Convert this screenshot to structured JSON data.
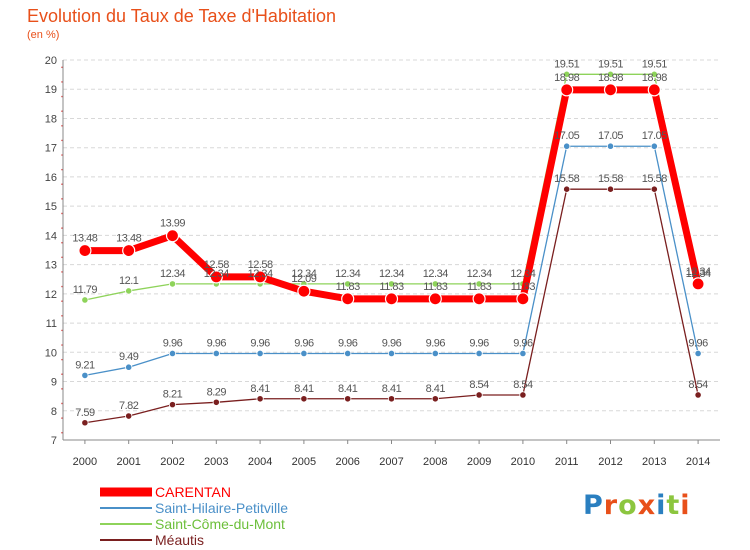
{
  "header": {
    "title": "Evolution du Taux de Taxe d'Habitation",
    "subtitle": "(en %)"
  },
  "logo": {
    "text": "Proxiti",
    "colors": [
      "#2a7fc0",
      "#e8501a",
      "#8cc63f",
      "#e8501a",
      "#2a7fc0",
      "#8cc63f",
      "#e8501a"
    ]
  },
  "chart_data": {
    "type": "line",
    "title": "Evolution du Taux de Taxe d'Habitation",
    "ylabel": "(en %)",
    "xlabel": "",
    "ylim": [
      7,
      20
    ],
    "yticks": [
      "7",
      "8",
      "9",
      "10",
      "11",
      "12",
      "13",
      "14",
      "15",
      "16",
      "17",
      "18",
      "19",
      "20"
    ],
    "grid": "horizontal",
    "legend_position": "bottom-left",
    "x": [
      "2000",
      "2001",
      "2002",
      "2003",
      "2004",
      "2005",
      "2006",
      "2007",
      "2008",
      "2009",
      "2010",
      "2011",
      "2012",
      "2013",
      "2014"
    ],
    "series": [
      {
        "name": "CARENTAN",
        "color": "#ff0000",
        "values": [
          13.48,
          13.48,
          13.99,
          12.58,
          12.58,
          12.09,
          11.83,
          11.83,
          11.83,
          11.83,
          11.83,
          18.98,
          18.98,
          18.98,
          12.34
        ],
        "labels": [
          "13.48",
          "13.48",
          "13.99",
          "12.58",
          "12.58",
          "12.09",
          "11.83",
          "11.83",
          "11.83",
          "11.83",
          "11.83",
          "18.98",
          "18.98",
          "18.98",
          "12.34"
        ]
      },
      {
        "name": "Saint-Hilaire-Petitville",
        "color": "#4a90c8",
        "values": [
          9.21,
          9.49,
          9.96,
          9.96,
          9.96,
          9.96,
          9.96,
          9.96,
          9.96,
          9.96,
          9.96,
          17.05,
          17.05,
          17.05,
          9.96
        ],
        "labels": [
          "9.21",
          "9.49",
          "9.96",
          "9.96",
          "9.96",
          "9.96",
          "9.96",
          "9.96",
          "9.96",
          "9.96",
          "9.96",
          "17.05",
          "17.05",
          "17.05",
          "9.96"
        ]
      },
      {
        "name": "Saint-Côme-du-Mont",
        "color": "#8ed35a",
        "values": [
          11.79,
          12.1,
          12.34,
          12.34,
          12.34,
          12.34,
          12.34,
          12.34,
          12.34,
          12.34,
          12.34,
          19.51,
          19.51,
          19.51,
          12.34
        ],
        "labels": [
          "11.79",
          "12.1",
          "12.34",
          "12.34",
          "12.34",
          "12.34",
          "12.34",
          "12.34",
          "12.34",
          "12.34",
          "12.34",
          "19.51",
          "19.51",
          "19.51",
          "12.34"
        ]
      },
      {
        "name": "Méautis",
        "color": "#7a1f1f",
        "values": [
          7.59,
          7.82,
          8.21,
          8.29,
          8.41,
          8.41,
          8.41,
          8.41,
          8.41,
          8.54,
          8.54,
          15.58,
          15.58,
          15.58,
          8.54
        ],
        "labels": [
          "7.59",
          "7.82",
          "8.21",
          "8.29",
          "8.41",
          "8.41",
          "8.41",
          "8.41",
          "8.41",
          "8.54",
          "8.54",
          "15.58",
          "15.58",
          "15.58",
          "8.54"
        ]
      }
    ]
  }
}
